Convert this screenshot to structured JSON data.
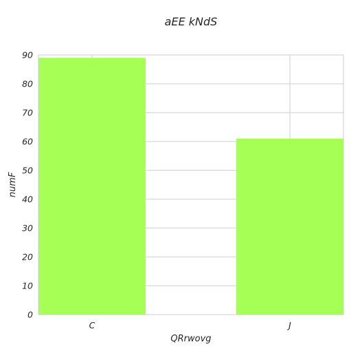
{
  "chart_data": {
    "type": "bar",
    "title": "aEE kNdS",
    "xlabel": "QRrwovg",
    "ylabel": "numF",
    "categories": [
      "C",
      "J"
    ],
    "values": [
      89,
      61
    ],
    "ylim": [
      0,
      90
    ],
    "yticks": [
      0,
      10,
      20,
      30,
      40,
      50,
      60,
      70,
      80,
      90
    ],
    "grid": true,
    "bar_color": "#a6ff55",
    "grid_color": "#cccccc",
    "text_color": "#262626"
  }
}
